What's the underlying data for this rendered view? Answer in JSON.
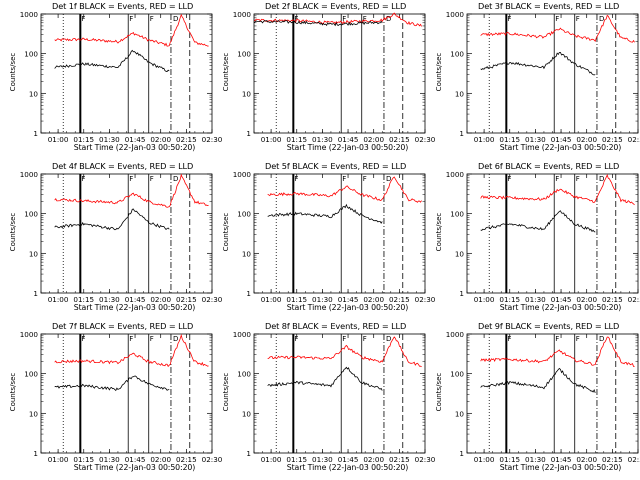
{
  "chart_data": [
    {
      "type": "line",
      "title": "Det 1f BLACK = Events, RED = LLD",
      "xlabel": "Start Time (22-Jan-03 00:50:20)",
      "ylabel": "Counts/sec",
      "x_ticks": [
        "01:00",
        "01:15",
        "01:30",
        "01:45",
        "02:00",
        "02:15",
        "02:30"
      ],
      "y_ticks": [
        "1",
        "10",
        "100",
        "1000"
      ],
      "ylim": [
        1,
        1000
      ],
      "y_scale": "log",
      "series": [
        {
          "color": "#ff0000",
          "points": [
            [
              "00:58",
              220
            ],
            [
              "01:15",
              230
            ],
            [
              "01:35",
              200
            ],
            [
              "01:44",
              330
            ],
            [
              "01:53",
              220
            ],
            [
              "02:05",
              160
            ],
            [
              "02:12",
              900
            ],
            [
              "02:20",
              190
            ],
            [
              "02:28",
              160
            ]
          ]
        },
        {
          "color": "#000000",
          "points": [
            [
              "00:58",
              45
            ],
            [
              "01:15",
              55
            ],
            [
              "01:35",
              45
            ],
            [
              "01:44",
              120
            ],
            [
              "01:53",
              60
            ],
            [
              "02:05",
              35
            ]
          ]
        }
      ]
    },
    {
      "type": "line",
      "title": "Det 2f BLACK = Events, RED = LLD",
      "xlabel": "Start Time (22-Jan-03 00:50:20)",
      "ylabel": "Counts/sec",
      "x_ticks": [
        "01:00",
        "01:15",
        "01:30",
        "01:45",
        "02:00",
        "02:15",
        "02:30"
      ],
      "y_ticks": [
        "1",
        "10",
        "100",
        "1000"
      ],
      "ylim": [
        1,
        1000
      ],
      "y_scale": "log",
      "series": [
        {
          "color": "#ff0000",
          "points": [
            [
              "00:50",
              700
            ],
            [
              "01:15",
              680
            ],
            [
              "01:35",
              600
            ],
            [
              "01:50",
              650
            ],
            [
              "02:05",
              700
            ],
            [
              "02:12",
              1000
            ],
            [
              "02:20",
              600
            ],
            [
              "02:28",
              500
            ]
          ]
        },
        {
          "color": "#000000",
          "points": [
            [
              "00:50",
              650
            ],
            [
              "01:15",
              620
            ],
            [
              "01:35",
              550
            ],
            [
              "01:50",
              580
            ],
            [
              "02:05",
              620
            ]
          ]
        }
      ]
    },
    {
      "type": "line",
      "title": "Det 3f BLACK = Events, RED = LLD",
      "xlabel": "Start Time (22-Jan-03 00:50:20)",
      "ylabel": "Counts/sec",
      "x_ticks": [
        "01:00",
        "01:15",
        "01:30",
        "01:45",
        "02:00",
        "02:15",
        "02:30"
      ],
      "y_ticks": [
        "1",
        "10",
        "100",
        "1000"
      ],
      "ylim": [
        1,
        1000
      ],
      "y_scale": "log",
      "series": [
        {
          "color": "#ff0000",
          "points": [
            [
              "00:58",
              300
            ],
            [
              "01:15",
              320
            ],
            [
              "01:35",
              260
            ],
            [
              "01:44",
              420
            ],
            [
              "01:53",
              280
            ],
            [
              "02:05",
              220
            ],
            [
              "02:12",
              900
            ],
            [
              "02:20",
              250
            ],
            [
              "02:28",
              200
            ]
          ]
        },
        {
          "color": "#000000",
          "points": [
            [
              "00:58",
              40
            ],
            [
              "01:15",
              60
            ],
            [
              "01:35",
              45
            ],
            [
              "01:44",
              110
            ],
            [
              "01:53",
              55
            ],
            [
              "02:05",
              30
            ]
          ]
        }
      ]
    },
    {
      "type": "line",
      "title": "Det 4f BLACK = Events, RED = LLD",
      "xlabel": "Start Time (22-Jan-03 00:50:20)",
      "ylabel": "Counts/sec",
      "x_ticks": [
        "01:00",
        "01:15",
        "01:30",
        "01:45",
        "02:00",
        "02:15",
        "02:30"
      ],
      "y_ticks": [
        "1",
        "10",
        "100",
        "1000"
      ],
      "ylim": [
        1,
        1000
      ],
      "y_scale": "log",
      "series": [
        {
          "color": "#ff0000",
          "points": [
            [
              "00:58",
              230
            ],
            [
              "01:15",
              210
            ],
            [
              "01:35",
              190
            ],
            [
              "01:44",
              320
            ],
            [
              "01:53",
              200
            ],
            [
              "02:05",
              150
            ],
            [
              "02:12",
              880
            ],
            [
              "02:20",
              200
            ],
            [
              "02:28",
              160
            ]
          ]
        },
        {
          "color": "#000000",
          "points": [
            [
              "00:58",
              45
            ],
            [
              "01:15",
              55
            ],
            [
              "01:35",
              40
            ],
            [
              "01:44",
              130
            ],
            [
              "01:53",
              60
            ],
            [
              "02:05",
              40
            ]
          ]
        }
      ]
    },
    {
      "type": "line",
      "title": "Det 5f BLACK = Events, RED = LLD",
      "xlabel": "Start Time (22-Jan-03 00:50:20)",
      "ylabel": "Counts/sec",
      "x_ticks": [
        "01:00",
        "01:15",
        "01:30",
        "01:45",
        "02:00",
        "02:15",
        "02:30"
      ],
      "y_ticks": [
        "1",
        "10",
        "100",
        "1000"
      ],
      "ylim": [
        1,
        1000
      ],
      "y_scale": "log",
      "series": [
        {
          "color": "#ff0000",
          "points": [
            [
              "00:58",
              300
            ],
            [
              "01:15",
              320
            ],
            [
              "01:35",
              280
            ],
            [
              "01:44",
              480
            ],
            [
              "01:53",
              300
            ],
            [
              "02:05",
              220
            ],
            [
              "02:12",
              900
            ],
            [
              "02:20",
              230
            ],
            [
              "02:28",
              200
            ]
          ]
        },
        {
          "color": "#000000",
          "points": [
            [
              "00:58",
              90
            ],
            [
              "01:15",
              100
            ],
            [
              "01:35",
              85
            ],
            [
              "01:44",
              160
            ],
            [
              "01:53",
              90
            ],
            [
              "02:05",
              60
            ]
          ]
        }
      ]
    },
    {
      "type": "line",
      "title": "Det 6f BLACK = Events, RED = LLD",
      "xlabel": "Start Time (22-Jan-03 00:50:20)",
      "ylabel": "Counts/sec",
      "x_ticks": [
        "01:00",
        "01:15",
        "01:30",
        "01:45",
        "02:00",
        "02:15",
        "02:30"
      ],
      "y_ticks": [
        "1",
        "10",
        "100",
        "1000"
      ],
      "ylim": [
        1,
        1000
      ],
      "y_scale": "log",
      "series": [
        {
          "color": "#ff0000",
          "points": [
            [
              "00:58",
              260
            ],
            [
              "01:15",
              250
            ],
            [
              "01:35",
              230
            ],
            [
              "01:44",
              420
            ],
            [
              "01:53",
              270
            ],
            [
              "02:05",
              200
            ],
            [
              "02:12",
              900
            ],
            [
              "02:20",
              220
            ],
            [
              "02:28",
              180
            ]
          ]
        },
        {
          "color": "#000000",
          "points": [
            [
              "00:58",
              40
            ],
            [
              "01:15",
              55
            ],
            [
              "01:35",
              40
            ],
            [
              "01:44",
              120
            ],
            [
              "01:53",
              55
            ],
            [
              "02:05",
              35
            ]
          ]
        }
      ]
    },
    {
      "type": "line",
      "title": "Det 7f BLACK = Events, RED = LLD",
      "xlabel": "Start Time (22-Jan-03 00:50:20)",
      "ylabel": "Counts/sec",
      "x_ticks": [
        "01:00",
        "01:15",
        "01:30",
        "01:45",
        "02:00",
        "02:15",
        "02:30"
      ],
      "y_ticks": [
        "1",
        "10",
        "100",
        "1000"
      ],
      "ylim": [
        1,
        1000
      ],
      "y_scale": "log",
      "series": [
        {
          "color": "#ff0000",
          "points": [
            [
              "00:58",
              200
            ],
            [
              "01:15",
              210
            ],
            [
              "01:35",
              190
            ],
            [
              "01:44",
              320
            ],
            [
              "01:53",
              200
            ],
            [
              "02:05",
              160
            ],
            [
              "02:12",
              880
            ],
            [
              "02:20",
              200
            ],
            [
              "02:28",
              160
            ]
          ]
        },
        {
          "color": "#000000",
          "points": [
            [
              "00:58",
              45
            ],
            [
              "01:15",
              50
            ],
            [
              "01:35",
              40
            ],
            [
              "01:44",
              90
            ],
            [
              "01:53",
              55
            ],
            [
              "02:05",
              40
            ]
          ]
        }
      ]
    },
    {
      "type": "line",
      "title": "Det 8f BLACK = Events, RED = LLD",
      "xlabel": "Start Time (22-Jan-03 00:50:20)",
      "ylabel": "Counts/sec",
      "x_ticks": [
        "01:00",
        "01:15",
        "01:30",
        "01:45",
        "02:00",
        "02:15",
        "02:30"
      ],
      "y_ticks": [
        "1",
        "10",
        "100",
        "1000"
      ],
      "ylim": [
        1,
        1000
      ],
      "y_scale": "log",
      "series": [
        {
          "color": "#ff0000",
          "points": [
            [
              "00:58",
              250
            ],
            [
              "01:15",
              260
            ],
            [
              "01:35",
              240
            ],
            [
              "01:44",
              480
            ],
            [
              "01:53",
              260
            ],
            [
              "02:05",
              200
            ],
            [
              "02:12",
              900
            ],
            [
              "02:20",
              200
            ],
            [
              "02:28",
              160
            ]
          ]
        },
        {
          "color": "#000000",
          "points": [
            [
              "00:58",
              50
            ],
            [
              "01:15",
              60
            ],
            [
              "01:35",
              50
            ],
            [
              "01:44",
              150
            ],
            [
              "01:53",
              60
            ],
            [
              "02:05",
              40
            ]
          ]
        }
      ]
    },
    {
      "type": "line",
      "title": "Det 9f BLACK = Events, RED = LLD",
      "xlabel": "Start Time (22-Jan-03 00:50:20)",
      "ylabel": "Counts/sec",
      "x_ticks": [
        "01:00",
        "01:15",
        "01:30",
        "01:45",
        "02:00",
        "02:15",
        "02:30"
      ],
      "y_ticks": [
        "1",
        "10",
        "100",
        "1000"
      ],
      "ylim": [
        1,
        1000
      ],
      "y_scale": "log",
      "series": [
        {
          "color": "#ff0000",
          "points": [
            [
              "00:58",
              220
            ],
            [
              "01:15",
              230
            ],
            [
              "01:35",
              200
            ],
            [
              "01:44",
              380
            ],
            [
              "01:53",
              220
            ],
            [
              "02:05",
              170
            ],
            [
              "02:12",
              900
            ],
            [
              "02:20",
              200
            ],
            [
              "02:28",
              160
            ]
          ]
        },
        {
          "color": "#000000",
          "points": [
            [
              "00:58",
              45
            ],
            [
              "01:15",
              60
            ],
            [
              "01:35",
              45
            ],
            [
              "01:44",
              130
            ],
            [
              "01:53",
              55
            ],
            [
              "02:05",
              35
            ]
          ]
        }
      ]
    }
  ],
  "markers": {
    "dotted": [
      "01:03"
    ],
    "thick_solid": [
      "01:13"
    ],
    "solid": [
      "01:41",
      "01:53"
    ],
    "dash_dot": [
      "02:06"
    ],
    "dashed": [
      "02:17"
    ]
  },
  "marker_glyph": "F",
  "marker_glyph_2": "D"
}
